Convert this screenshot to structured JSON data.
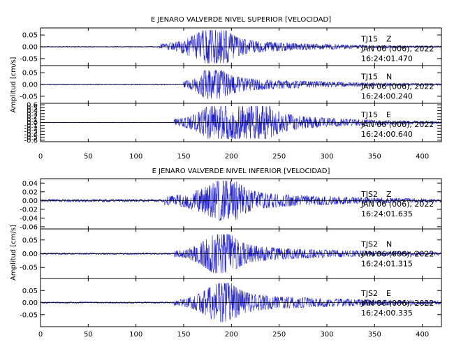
{
  "chart_data": [
    {
      "type": "line",
      "title": "E JENARO VALVERDE NIVEL SUPERIOR [VELOCIDAD]",
      "ylabel": "Amplitud [cm/s]",
      "xlabel": "",
      "xlim": [
        0,
        420
      ],
      "x_ticks": [
        "0",
        "50",
        "100",
        "150",
        "200",
        "250",
        "300",
        "350",
        "400"
      ],
      "series_color": "#2222cc",
      "panels": [
        {
          "station": "TJ15",
          "component": "Z",
          "date": "JAN 06 (006), 2022",
          "time": "16:24:01.470",
          "ylim": [
            -0.08,
            0.08
          ],
          "y_ticks": [
            -0.05,
            0.0,
            0.05
          ],
          "y_tick_labels": [
            "-0.05",
            "0.00",
            "0.05"
          ],
          "envelope": {
            "noise_amplitude": 0.002,
            "onset_s": 125,
            "onset_amplitude": 0.012,
            "peak_start_s": 170,
            "peak_end_s": 195,
            "peak_amplitude": 0.07,
            "coda_decay_s": 40,
            "coda_amplitude": 0.03
          }
        },
        {
          "station": "TJ15",
          "component": "N",
          "date": "JAN 06 (006), 2022",
          "time": "16:24:00.240",
          "ylim": [
            -0.08,
            0.08
          ],
          "y_ticks": [
            -0.05,
            0.0,
            0.05
          ],
          "y_tick_labels": [
            "-0.05",
            "0.00",
            "0.05"
          ],
          "envelope": {
            "noise_amplitude": 0.002,
            "onset_s": 150,
            "onset_amplitude": 0.015,
            "peak_start_s": 172,
            "peak_end_s": 190,
            "peak_amplitude": 0.06,
            "coda_decay_s": 45,
            "coda_amplitude": 0.03
          }
        },
        {
          "station": "TJ15",
          "component": "E",
          "date": "JAN 06 (006), 2022",
          "time": "16:24:00.640",
          "ylim": [
            -0.65,
            0.65
          ],
          "y_ticks": [
            -0.6,
            -0.5,
            -0.4,
            -0.3,
            -0.2,
            -0.1,
            0.0,
            0.1,
            0.2,
            0.3,
            0.4,
            0.5,
            0.6
          ],
          "y_tick_labels": [
            "-0.6",
            "-0.5",
            "-0.4",
            "-0.3",
            "-0.2",
            "-0.1",
            "0.0",
            "0.1",
            "0.2",
            "0.3",
            "0.4",
            "0.5",
            "0.6"
          ],
          "envelope": {
            "noise_amplitude": 0.01,
            "onset_s": 140,
            "onset_amplitude": 0.12,
            "peak_start_s": 175,
            "peak_end_s": 240,
            "peak_amplitude": 0.55,
            "coda_decay_s": 35,
            "coda_amplitude": 0.3
          }
        }
      ]
    },
    {
      "type": "line",
      "title": "E JENARO VALVERDE NIVEL INFERIOR [VELOCIDAD]",
      "ylabel": "Amplitud [cm/s]",
      "xlabel": "",
      "xlim": [
        0,
        420
      ],
      "x_ticks": [
        "0",
        "50",
        "100",
        "150",
        "200",
        "250",
        "300",
        "350",
        "400"
      ],
      "series_color": "#2222cc",
      "panels": [
        {
          "station": "TJS2",
          "component": "Z",
          "date": "JAN 06 (006), 2022",
          "time": "16:24:01.635",
          "ylim": [
            -0.065,
            0.05
          ],
          "y_ticks": [
            -0.06,
            -0.04,
            -0.02,
            0.0,
            0.02,
            0.04
          ],
          "y_tick_labels": [
            "-0.06",
            "-0.04",
            "-0.02",
            "0.00",
            "0.02",
            "0.04"
          ],
          "envelope": {
            "noise_amplitude": 0.003,
            "onset_s": 130,
            "onset_amplitude": 0.01,
            "peak_start_s": 185,
            "peak_end_s": 205,
            "peak_amplitude": 0.045,
            "coda_decay_s": 50,
            "coda_amplitude": 0.02
          }
        },
        {
          "station": "TJS2",
          "component": "N",
          "date": "JAN 06 (006), 2022",
          "time": "16:24:01.315",
          "ylim": [
            -0.09,
            0.09
          ],
          "y_ticks": [
            -0.05,
            0.0,
            0.05
          ],
          "y_tick_labels": [
            "-0.05",
            "0.00",
            "0.05"
          ],
          "envelope": {
            "noise_amplitude": 0.003,
            "onset_s": 140,
            "onset_amplitude": 0.012,
            "peak_start_s": 180,
            "peak_end_s": 200,
            "peak_amplitude": 0.07,
            "coda_decay_s": 50,
            "coda_amplitude": 0.03
          }
        },
        {
          "station": "TJS2",
          "component": "E",
          "date": "JAN 06 (006), 2022",
          "time": "16:24:00.335",
          "ylim": [
            -0.1,
            0.1
          ],
          "y_ticks": [
            -0.05,
            0.0,
            0.05
          ],
          "y_tick_labels": [
            "-0.05",
            "0.00",
            "0.05"
          ],
          "envelope": {
            "noise_amplitude": 0.003,
            "onset_s": 140,
            "onset_amplitude": 0.012,
            "peak_start_s": 183,
            "peak_end_s": 200,
            "peak_amplitude": 0.08,
            "coda_decay_s": 55,
            "coda_amplitude": 0.035
          }
        }
      ]
    }
  ]
}
